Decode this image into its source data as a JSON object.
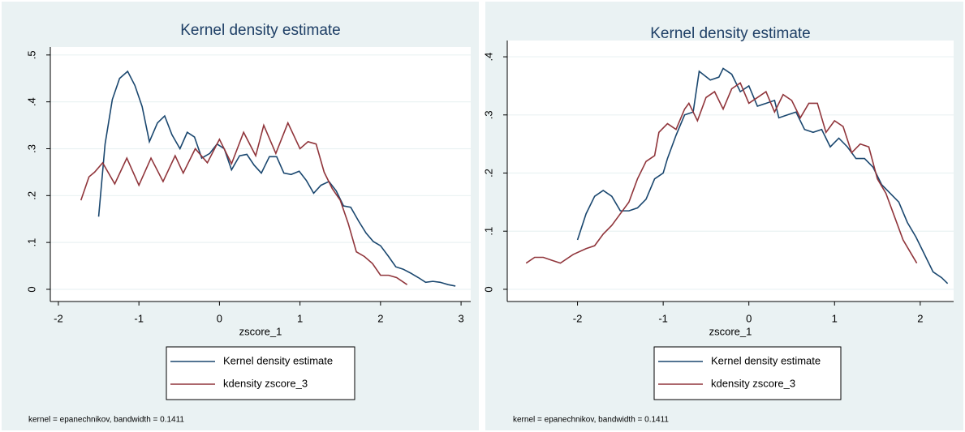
{
  "chart_data": [
    {
      "type": "line",
      "title": "Kernel density estimate",
      "x_label": "zscore_1",
      "note": "kernel = epanechnikov, bandwidth = 0.1411",
      "legend": "bottom",
      "grid": true,
      "xlim": [
        -2.1,
        3.12
      ],
      "ylim": [
        -0.026,
        0.517
      ],
      "xticks": [
        -2,
        -1,
        0,
        1,
        2,
        3
      ],
      "yticks": [
        {
          "value": 0,
          "label": "0"
        },
        {
          "value": 0.1,
          "label": ".1"
        },
        {
          "value": 0.2,
          "label": ".2"
        },
        {
          "value": 0.3,
          "label": ".3"
        },
        {
          "value": 0.4,
          "label": ".4"
        },
        {
          "value": 0.5,
          "label": ".5"
        }
      ],
      "series": [
        {
          "name": "Kernel density estimate",
          "color": "#1a476f",
          "x": [
            -1.5,
            -1.42,
            -1.33,
            -1.24,
            -1.14,
            -1.05,
            -0.96,
            -0.87,
            -0.77,
            -0.68,
            -0.59,
            -0.49,
            -0.4,
            -0.31,
            -0.22,
            -0.12,
            -0.03,
            0.06,
            0.15,
            0.25,
            0.34,
            0.43,
            0.52,
            0.62,
            0.71,
            0.8,
            0.89,
            0.99,
            1.08,
            1.17,
            1.26,
            1.36,
            1.45,
            1.54,
            1.63,
            1.73,
            1.82,
            1.91,
            2.0,
            2.1,
            2.19,
            2.28,
            2.37,
            2.47,
            2.56,
            2.65,
            2.74,
            2.84,
            2.93
          ],
          "values": [
            0.155,
            0.31,
            0.405,
            0.45,
            0.465,
            0.435,
            0.39,
            0.315,
            0.355,
            0.37,
            0.33,
            0.3,
            0.335,
            0.325,
            0.28,
            0.29,
            0.31,
            0.3,
            0.255,
            0.285,
            0.288,
            0.265,
            0.248,
            0.283,
            0.283,
            0.248,
            0.245,
            0.252,
            0.232,
            0.205,
            0.222,
            0.23,
            0.21,
            0.178,
            0.175,
            0.145,
            0.12,
            0.102,
            0.093,
            0.07,
            0.048,
            0.043,
            0.035,
            0.025,
            0.015,
            0.017,
            0.015,
            0.01,
            0.007
          ]
        },
        {
          "name": "kdensity zscore_3",
          "color": "#90353b",
          "x": [
            -1.72,
            -1.62,
            -1.55,
            -1.45,
            -1.3,
            -1.15,
            -1.0,
            -0.85,
            -0.7,
            -0.55,
            -0.45,
            -0.3,
            -0.15,
            0,
            0.15,
            0.3,
            0.45,
            0.55,
            0.7,
            0.85,
            1.0,
            1.1,
            1.2,
            1.3,
            1.4,
            1.5,
            1.6,
            1.7,
            1.8,
            1.9,
            2.0,
            2.1,
            2.2,
            2.33
          ],
          "values": [
            0.19,
            0.24,
            0.25,
            0.27,
            0.225,
            0.28,
            0.222,
            0.28,
            0.23,
            0.285,
            0.248,
            0.3,
            0.27,
            0.32,
            0.268,
            0.335,
            0.285,
            0.35,
            0.29,
            0.355,
            0.3,
            0.315,
            0.31,
            0.25,
            0.215,
            0.19,
            0.14,
            0.08,
            0.07,
            0.055,
            0.03,
            0.03,
            0.025,
            0.01
          ]
        }
      ]
    },
    {
      "type": "line",
      "title": "Kernel density estimate",
      "x_label": "zscore_1",
      "note": "kernel = epanechnikov, bandwidth = 0.1411",
      "legend": "bottom",
      "grid": true,
      "xlim": [
        -2.82,
        2.39
      ],
      "ylim": [
        -0.021,
        0.428
      ],
      "xticks": [
        -2,
        -1,
        0,
        1,
        2
      ],
      "yticks": [
        {
          "value": 0,
          "label": "0"
        },
        {
          "value": 0.1,
          "label": ".1"
        },
        {
          "value": 0.2,
          "label": ".2"
        },
        {
          "value": 0.3,
          "label": ".3"
        },
        {
          "value": 0.4,
          "label": ".4"
        }
      ],
      "series": [
        {
          "name": "Kernel density estimate",
          "color": "#1a476f",
          "x": [
            -2.0,
            -1.9,
            -1.8,
            -1.7,
            -1.6,
            -1.5,
            -1.4,
            -1.3,
            -1.2,
            -1.1,
            -1.0,
            -0.95,
            -0.85,
            -0.75,
            -0.65,
            -0.58,
            -0.45,
            -0.35,
            -0.3,
            -0.2,
            -0.1,
            0,
            0.1,
            0.2,
            0.3,
            0.35,
            0.45,
            0.55,
            0.65,
            0.75,
            0.85,
            0.95,
            1.05,
            1.15,
            1.25,
            1.35,
            1.45,
            1.55,
            1.65,
            1.75,
            1.85,
            1.95,
            2.05,
            2.15,
            2.25,
            2.32
          ],
          "values": [
            0.085,
            0.13,
            0.16,
            0.17,
            0.16,
            0.135,
            0.135,
            0.14,
            0.155,
            0.19,
            0.2,
            0.225,
            0.265,
            0.3,
            0.305,
            0.375,
            0.36,
            0.365,
            0.38,
            0.37,
            0.34,
            0.35,
            0.315,
            0.32,
            0.325,
            0.295,
            0.3,
            0.305,
            0.275,
            0.27,
            0.275,
            0.245,
            0.26,
            0.245,
            0.225,
            0.225,
            0.21,
            0.18,
            0.165,
            0.15,
            0.115,
            0.09,
            0.06,
            0.03,
            0.02,
            0.01
          ]
        },
        {
          "name": "kdensity zscore_3",
          "color": "#90353b",
          "x": [
            -2.6,
            -2.5,
            -2.4,
            -2.3,
            -2.2,
            -2.05,
            -1.9,
            -1.8,
            -1.7,
            -1.6,
            -1.5,
            -1.4,
            -1.3,
            -1.2,
            -1.1,
            -1.05,
            -0.95,
            -0.85,
            -0.75,
            -0.7,
            -0.6,
            -0.5,
            -0.4,
            -0.3,
            -0.2,
            -0.1,
            0,
            0.1,
            0.2,
            0.3,
            0.4,
            0.5,
            0.6,
            0.7,
            0.8,
            0.9,
            1.0,
            1.1,
            1.2,
            1.3,
            1.4,
            1.5,
            1.6,
            1.7,
            1.8,
            1.9,
            1.96
          ],
          "values": [
            0.045,
            0.055,
            0.055,
            0.05,
            0.045,
            0.06,
            0.07,
            0.075,
            0.095,
            0.11,
            0.13,
            0.15,
            0.19,
            0.22,
            0.23,
            0.27,
            0.285,
            0.275,
            0.31,
            0.32,
            0.29,
            0.33,
            0.34,
            0.31,
            0.345,
            0.355,
            0.32,
            0.33,
            0.34,
            0.305,
            0.335,
            0.325,
            0.295,
            0.32,
            0.32,
            0.27,
            0.29,
            0.28,
            0.235,
            0.25,
            0.245,
            0.19,
            0.165,
            0.125,
            0.085,
            0.06,
            0.045
          ]
        }
      ]
    }
  ]
}
